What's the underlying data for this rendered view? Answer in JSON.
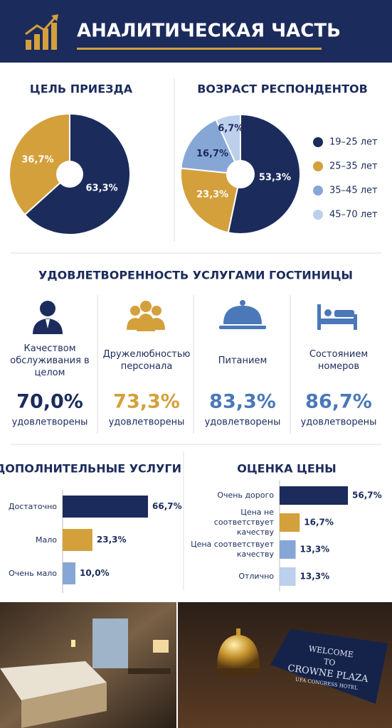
{
  "header": {
    "title": "АНАЛИТИЧЕСКАЯ ЧАСТЬ"
  },
  "chart_data": [
    {
      "type": "pie",
      "title": "ЦЕЛЬ ПРИЕЗДА",
      "values": [
        63.3,
        36.7
      ],
      "value_labels": [
        "63,3%",
        "36,7%"
      ],
      "colors": [
        "#1b2b5c",
        "#d4a03c"
      ]
    },
    {
      "type": "pie",
      "title": "ВОЗРАСТ РЕСПОНДЕНТОВ",
      "categories": [
        "19–25 лет",
        "25–35 лет",
        "35–45 лет",
        "45–70 лет"
      ],
      "values": [
        53.3,
        23.3,
        16.7,
        6.7
      ],
      "value_labels": [
        "53,3%",
        "23,3%",
        "16,7%",
        "6,7%"
      ],
      "colors": [
        "#1b2b5c",
        "#d4a03c",
        "#86a6d6",
        "#bccfeb"
      ],
      "legend": "right"
    },
    {
      "type": "hbar",
      "title": "ДОПОЛНИТЕЛЬНЫЕ УСЛУГИ",
      "categories": [
        "Достаточно",
        "Мало",
        "Очень мало"
      ],
      "values": [
        66.7,
        23.3,
        10.0
      ],
      "value_labels": [
        "66,7%",
        "23,3%",
        "10,0%"
      ],
      "colors": [
        "#1b2b5c",
        "#d4a03c",
        "#86a6d6"
      ]
    },
    {
      "type": "hbar",
      "title": "ОЦЕНКА ЦЕНЫ",
      "categories": [
        "Очень дорого",
        "Цена не соответствует качеству",
        "Цена соответствует качеству",
        "Отлично"
      ],
      "values": [
        56.7,
        16.7,
        13.3,
        13.3
      ],
      "value_labels": [
        "56,7%",
        "16,7%",
        "13,3%",
        "13,3%"
      ],
      "colors": [
        "#1b2b5c",
        "#d4a03c",
        "#86a6d6",
        "#bccfeb"
      ]
    }
  ],
  "satisfaction": {
    "title": "УДОВЛЕТВОРЕННОСТЬ УСЛУГАМИ ГОСТИНИЦЫ",
    "caption": "удовлетворены",
    "items": [
      {
        "label": "Качеством обслуживания в целом",
        "value": 70.0,
        "value_label": "70,0%",
        "color": "#1b2b5c"
      },
      {
        "label": "Дружелюбностью персонала",
        "value": 73.3,
        "value_label": "73,3%",
        "color": "#d4a03c"
      },
      {
        "label": "Питанием",
        "value": 83.3,
        "value_label": "83,3%",
        "color": "#4a78b8"
      },
      {
        "label": "Состоянием номеров",
        "value": 86.7,
        "value_label": "86,7%",
        "color": "#4a78b8"
      }
    ]
  },
  "photo": {
    "sign": [
      "WELCOME",
      "TO",
      "CROWNE PLAZA",
      "UFA CONGRESS HOTEL"
    ]
  }
}
